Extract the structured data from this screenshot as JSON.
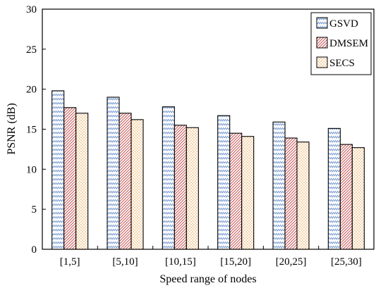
{
  "chart_data": {
    "type": "bar",
    "title": "",
    "xlabel": "Speed range of nodes",
    "ylabel": "PSNR (dB)",
    "ylim": [
      0,
      30
    ],
    "yticks": [
      0,
      5,
      10,
      15,
      20,
      25,
      30
    ],
    "grid": false,
    "legend_position": "top-right",
    "categories": [
      "[1,5]",
      "[5,10]",
      "[10,15]",
      "[15,20]",
      "[20,25]",
      "[25,30]"
    ],
    "series": [
      {
        "name": "GSVD",
        "values": [
          19.8,
          19.0,
          17.8,
          16.7,
          15.9,
          15.1
        ],
        "color": "#a9bfe0",
        "pattern": "zigzag"
      },
      {
        "name": "DMSEM",
        "values": [
          17.7,
          17.0,
          15.5,
          14.5,
          13.9,
          13.1
        ],
        "color": "#e28a8a",
        "pattern": "diagonal"
      },
      {
        "name": "SECS",
        "values": [
          17.0,
          16.2,
          15.2,
          14.1,
          13.4,
          12.7
        ],
        "color": "#f5c27a",
        "pattern": "dots"
      }
    ]
  }
}
